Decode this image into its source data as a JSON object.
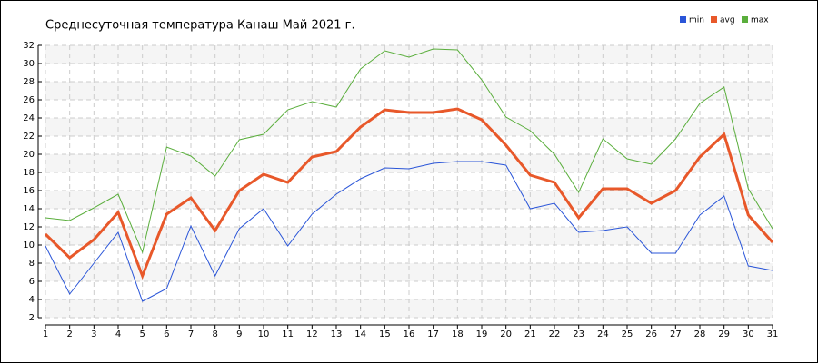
{
  "chart_data": {
    "type": "line",
    "title": "Среднесуточная температура Канаш  Май 2021 г.",
    "x": [
      1,
      2,
      3,
      4,
      5,
      6,
      7,
      8,
      9,
      10,
      11,
      12,
      13,
      14,
      15,
      16,
      17,
      18,
      19,
      20,
      21,
      22,
      23,
      24,
      25,
      26,
      27,
      28,
      29,
      30,
      31
    ],
    "xlim": [
      1,
      31
    ],
    "xticks": [
      1,
      2,
      3,
      4,
      5,
      6,
      7,
      8,
      9,
      10,
      11,
      12,
      13,
      14,
      15,
      16,
      17,
      18,
      19,
      20,
      21,
      22,
      23,
      24,
      25,
      26,
      27,
      28,
      29,
      30,
      31
    ],
    "ylim": [
      2,
      32
    ],
    "yticks": [
      2,
      4,
      6,
      8,
      10,
      12,
      14,
      16,
      18,
      20,
      22,
      24,
      26,
      28,
      30,
      32
    ],
    "grid": true,
    "legend": "top-right",
    "series": [
      {
        "name": "min",
        "color": "#2a55d8",
        "values": [
          9.9,
          4.6,
          8.0,
          11.4,
          3.8,
          5.2,
          12.1,
          6.6,
          11.8,
          14.0,
          9.9,
          13.4,
          15.6,
          17.3,
          18.5,
          18.4,
          19.0,
          19.2,
          19.2,
          18.8,
          14.0,
          14.6,
          11.4,
          11.6,
          12.0,
          9.1,
          9.1,
          13.3,
          15.4,
          7.7,
          7.2
        ]
      },
      {
        "name": "avg",
        "color": "#e8582a",
        "values": [
          11.2,
          8.6,
          10.6,
          13.6,
          6.6,
          13.4,
          15.2,
          11.6,
          16.0,
          17.8,
          16.9,
          19.7,
          20.3,
          23.0,
          24.9,
          24.6,
          24.6,
          25.0,
          23.8,
          21.0,
          17.7,
          16.9,
          13.0,
          16.2,
          16.2,
          14.6,
          16.0,
          19.7,
          22.2,
          13.3,
          10.3
        ]
      },
      {
        "name": "max",
        "color": "#5aae3c",
        "values": [
          13.0,
          12.7,
          14.1,
          15.6,
          9.2,
          20.8,
          19.8,
          17.6,
          21.6,
          22.2,
          24.9,
          25.8,
          25.2,
          29.4,
          31.4,
          30.7,
          31.6,
          31.5,
          28.2,
          24.1,
          22.6,
          20.0,
          15.8,
          21.7,
          19.5,
          18.9,
          21.7,
          25.6,
          27.4,
          16.2,
          11.8
        ]
      }
    ]
  }
}
